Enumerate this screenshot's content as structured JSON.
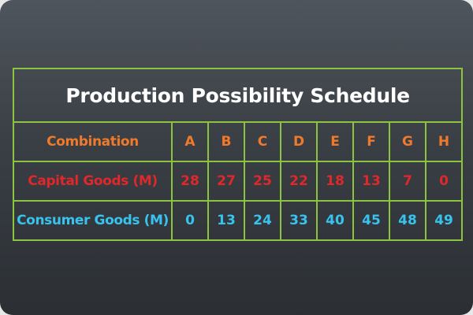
{
  "chart_data": {
    "type": "table",
    "title": "Production Possibility Schedule",
    "header_label": "Combination",
    "categories": [
      "A",
      "B",
      "C",
      "D",
      "E",
      "F",
      "G",
      "H"
    ],
    "series": [
      {
        "name": "Capital Goods (M)",
        "values": [
          28,
          27,
          25,
          22,
          18,
          13,
          7,
          0
        ],
        "color": "#e0272b"
      },
      {
        "name": "Consumer Goods (M)",
        "values": [
          0,
          13,
          24,
          33,
          40,
          45,
          48,
          49
        ],
        "color": "#37c3ee"
      }
    ]
  },
  "colors": {
    "header": "#f07a2a",
    "border": "#8cc43f",
    "title": "#ffffff",
    "background_top": "#4f555c",
    "background_bottom": "#2b2f34"
  }
}
